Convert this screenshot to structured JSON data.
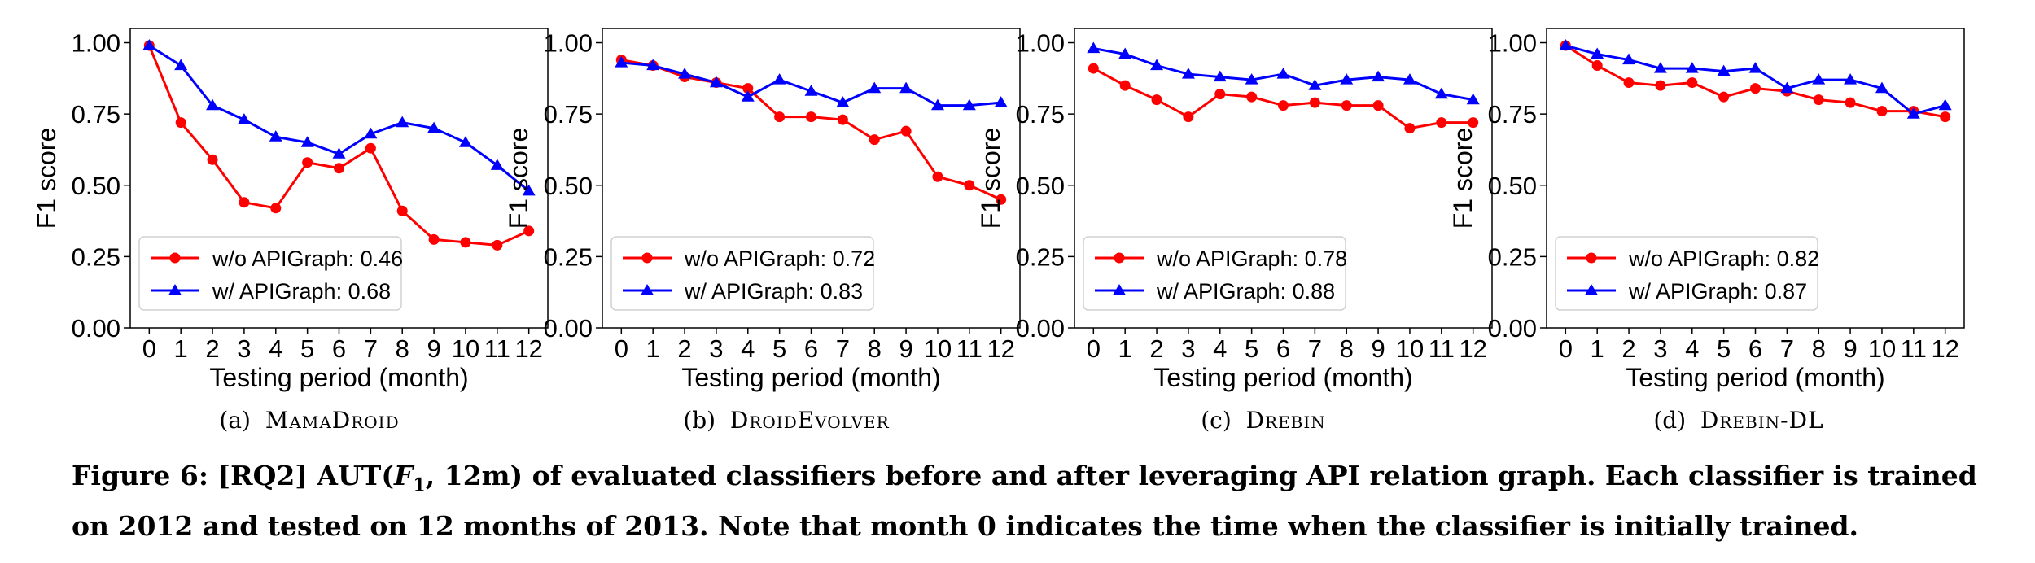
{
  "chart_data": [
    {
      "type": "line",
      "id": "a",
      "subcaption_prefix": "(a)",
      "subcaption_name": "MamaDroid",
      "xlabel": "Testing period (month)",
      "ylabel": "F1 score",
      "x": [
        0,
        1,
        2,
        3,
        4,
        5,
        6,
        7,
        8,
        9,
        10,
        11,
        12
      ],
      "x_tick_labels": [
        "0",
        "1",
        "2",
        "3",
        "4",
        "5",
        "6",
        "7",
        "8",
        "9",
        "10",
        "11",
        "12"
      ],
      "ylim": [
        0,
        1.05
      ],
      "y_ticks": [
        "0.00",
        "0.25",
        "0.50",
        "0.75",
        "1.00"
      ],
      "legend_position": "lower-left",
      "series": [
        {
          "name": "w/o APIGraph: 0.46",
          "color": "#ff0000",
          "marker": "circle",
          "values": [
            0.99,
            0.72,
            0.59,
            0.44,
            0.42,
            0.58,
            0.56,
            0.63,
            0.41,
            0.31,
            0.3,
            0.29,
            0.34
          ]
        },
        {
          "name": "w/ APIGraph: 0.68",
          "color": "#0000ff",
          "marker": "triangle",
          "values": [
            0.99,
            0.92,
            0.78,
            0.73,
            0.67,
            0.65,
            0.61,
            0.68,
            0.72,
            0.7,
            0.65,
            0.57,
            0.48
          ]
        }
      ]
    },
    {
      "type": "line",
      "id": "b",
      "subcaption_prefix": "(b)",
      "subcaption_name": "DroidEvolver",
      "xlabel": "Testing period (month)",
      "ylabel": "F1 score",
      "x": [
        0,
        1,
        2,
        3,
        4,
        5,
        6,
        7,
        8,
        9,
        10,
        11,
        12
      ],
      "x_tick_labels": [
        "0",
        "1",
        "2",
        "3",
        "4",
        "5",
        "6",
        "7",
        "8",
        "9",
        "10",
        "11",
        "12"
      ],
      "ylim": [
        0,
        1.05
      ],
      "y_ticks": [
        "0.00",
        "0.25",
        "0.50",
        "0.75",
        "1.00"
      ],
      "legend_position": "lower-left",
      "series": [
        {
          "name": "w/o APIGraph: 0.72",
          "color": "#ff0000",
          "marker": "circle",
          "values": [
            0.94,
            0.92,
            0.88,
            0.86,
            0.84,
            0.74,
            0.74,
            0.73,
            0.66,
            0.69,
            0.53,
            0.5,
            0.45
          ]
        },
        {
          "name": "w/ APIGraph: 0.83",
          "color": "#0000ff",
          "marker": "triangle",
          "values": [
            0.93,
            0.92,
            0.89,
            0.86,
            0.81,
            0.87,
            0.83,
            0.79,
            0.84,
            0.84,
            0.78,
            0.78,
            0.79
          ]
        }
      ]
    },
    {
      "type": "line",
      "id": "c",
      "subcaption_prefix": "(c)",
      "subcaption_name": "Drebin",
      "xlabel": "Testing period (month)",
      "ylabel": "F1 score",
      "x": [
        0,
        1,
        2,
        3,
        4,
        5,
        6,
        7,
        8,
        9,
        10,
        11,
        12
      ],
      "x_tick_labels": [
        "0",
        "1",
        "2",
        "3",
        "4",
        "5",
        "6",
        "7",
        "8",
        "9",
        "10",
        "11",
        "12"
      ],
      "ylim": [
        0,
        1.05
      ],
      "y_ticks": [
        "0.00",
        "0.25",
        "0.50",
        "0.75",
        "1.00"
      ],
      "legend_position": "lower-left",
      "series": [
        {
          "name": "w/o APIGraph: 0.78",
          "color": "#ff0000",
          "marker": "circle",
          "values": [
            0.91,
            0.85,
            0.8,
            0.74,
            0.82,
            0.81,
            0.78,
            0.79,
            0.78,
            0.78,
            0.7,
            0.72,
            0.72
          ]
        },
        {
          "name": "w/ APIGraph: 0.88",
          "color": "#0000ff",
          "marker": "triangle",
          "values": [
            0.98,
            0.96,
            0.92,
            0.89,
            0.88,
            0.87,
            0.89,
            0.85,
            0.87,
            0.88,
            0.87,
            0.82,
            0.8
          ]
        }
      ]
    },
    {
      "type": "line",
      "id": "d",
      "subcaption_prefix": "(d)",
      "subcaption_name": "Drebin-DL",
      "xlabel": "Testing period (month)",
      "ylabel": "F1 score",
      "x": [
        0,
        1,
        2,
        3,
        4,
        5,
        6,
        7,
        8,
        9,
        10,
        11,
        12
      ],
      "x_tick_labels": [
        "0",
        "1",
        "2",
        "3",
        "4",
        "5",
        "6",
        "7",
        "8",
        "9",
        "10",
        "11",
        "12"
      ],
      "ylim": [
        0,
        1.05
      ],
      "y_ticks": [
        "0.00",
        "0.25",
        "0.50",
        "0.75",
        "1.00"
      ],
      "legend_position": "lower-left",
      "series": [
        {
          "name": "w/o APIGraph: 0.82",
          "color": "#ff0000",
          "marker": "circle",
          "values": [
            0.99,
            0.92,
            0.86,
            0.85,
            0.86,
            0.81,
            0.84,
            0.83,
            0.8,
            0.79,
            0.76,
            0.76,
            0.74
          ]
        },
        {
          "name": "w/ APIGraph: 0.87",
          "color": "#0000ff",
          "marker": "triangle",
          "values": [
            0.99,
            0.96,
            0.94,
            0.91,
            0.91,
            0.9,
            0.91,
            0.84,
            0.87,
            0.87,
            0.84,
            0.75,
            0.78
          ]
        }
      ]
    }
  ],
  "figure_caption": {
    "line1_pre": "Figure 6: [RQ2] AUT(",
    "line1_f": "F",
    "line1_sub": "1",
    "line1_post": ", 12m) of evaluated classifiers before and after leveraging API relation graph. Each classifier is trained",
    "line2": "on 2012 and tested on 12 months of 2013. Note that month 0 indicates the time when the classifier is initially trained."
  }
}
